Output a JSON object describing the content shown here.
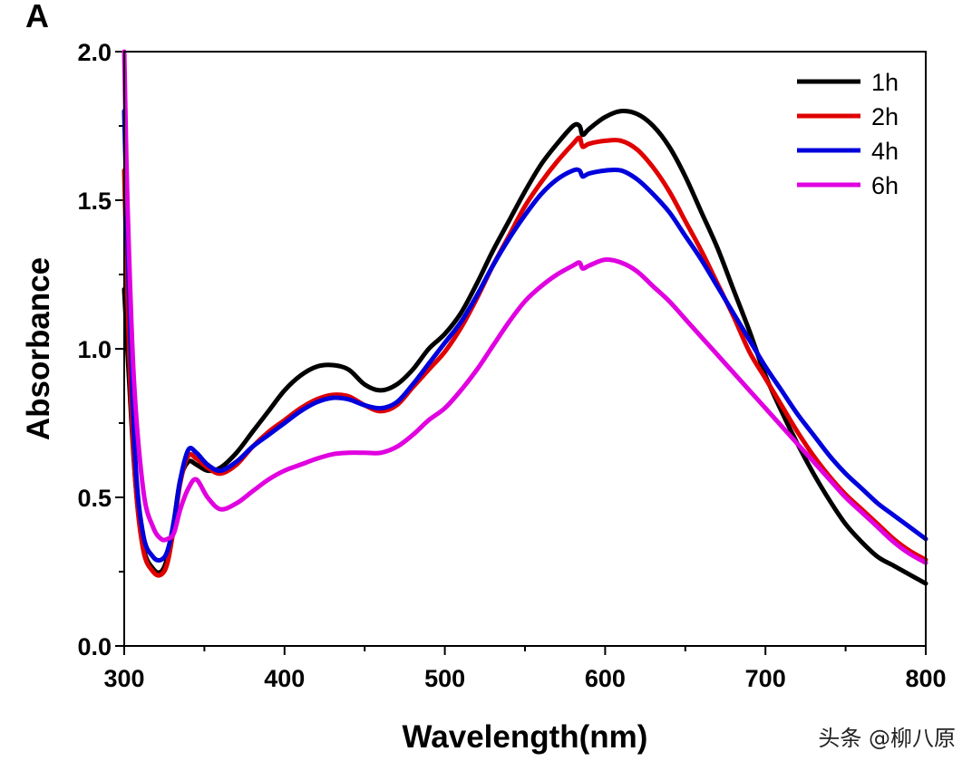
{
  "chart_data": {
    "type": "line",
    "panel_label": "A",
    "title": "",
    "xlabel": "Wavelength(nm)",
    "ylabel": "Absorbance",
    "xlim": [
      300,
      800
    ],
    "ylim": [
      0.0,
      2.0
    ],
    "x_ticks": [
      300,
      400,
      500,
      600,
      700,
      800
    ],
    "x_tick_labels": [
      "300",
      "400",
      "500",
      "600",
      "700",
      "800"
    ],
    "y_ticks": [
      0.0,
      0.5,
      1.0,
      1.5,
      2.0
    ],
    "y_tick_labels": [
      "0.0",
      "0.5",
      "1.0",
      "1.5",
      "2.0"
    ],
    "grid": false,
    "legend_position": "top-right",
    "series": [
      {
        "name": "1h",
        "color": "#000000",
        "x": [
          300,
          303,
          307,
          312,
          318,
          323,
          327,
          331,
          335,
          340,
          345,
          352,
          360,
          370,
          380,
          390,
          400,
          410,
          420,
          430,
          440,
          450,
          460,
          470,
          480,
          490,
          500,
          510,
          520,
          530,
          540,
          550,
          560,
          570,
          580,
          584,
          586,
          590,
          600,
          610,
          620,
          630,
          640,
          650,
          660,
          670,
          680,
          690,
          700,
          710,
          720,
          730,
          740,
          750,
          760,
          770,
          780,
          790,
          800
        ],
        "values": [
          1.2,
          0.9,
          0.55,
          0.33,
          0.26,
          0.25,
          0.3,
          0.42,
          0.56,
          0.62,
          0.61,
          0.59,
          0.6,
          0.65,
          0.72,
          0.79,
          0.86,
          0.91,
          0.94,
          0.945,
          0.93,
          0.88,
          0.86,
          0.88,
          0.93,
          1.0,
          1.05,
          1.12,
          1.22,
          1.33,
          1.43,
          1.53,
          1.62,
          1.69,
          1.75,
          1.75,
          1.72,
          1.74,
          1.78,
          1.8,
          1.79,
          1.75,
          1.68,
          1.58,
          1.46,
          1.34,
          1.2,
          1.06,
          0.91,
          0.79,
          0.68,
          0.58,
          0.49,
          0.41,
          0.35,
          0.3,
          0.27,
          0.24,
          0.21
        ]
      },
      {
        "name": "2h",
        "color": "#e00000",
        "x": [
          300,
          303,
          307,
          312,
          318,
          323,
          327,
          331,
          335,
          340,
          345,
          352,
          360,
          370,
          380,
          390,
          400,
          410,
          420,
          430,
          440,
          450,
          460,
          470,
          480,
          490,
          500,
          510,
          520,
          530,
          540,
          550,
          560,
          570,
          580,
          584,
          586,
          590,
          600,
          610,
          620,
          630,
          640,
          650,
          660,
          670,
          680,
          690,
          700,
          710,
          720,
          730,
          740,
          750,
          760,
          770,
          780,
          790,
          800
        ],
        "values": [
          1.6,
          1.0,
          0.55,
          0.32,
          0.25,
          0.24,
          0.28,
          0.4,
          0.55,
          0.64,
          0.63,
          0.6,
          0.58,
          0.61,
          0.67,
          0.72,
          0.76,
          0.8,
          0.83,
          0.845,
          0.84,
          0.81,
          0.79,
          0.81,
          0.87,
          0.93,
          0.99,
          1.07,
          1.17,
          1.28,
          1.38,
          1.48,
          1.56,
          1.63,
          1.69,
          1.71,
          1.68,
          1.69,
          1.7,
          1.7,
          1.67,
          1.61,
          1.53,
          1.43,
          1.33,
          1.22,
          1.11,
          0.99,
          0.9,
          0.81,
          0.72,
          0.64,
          0.57,
          0.51,
          0.46,
          0.41,
          0.36,
          0.32,
          0.29
        ]
      },
      {
        "name": "4h",
        "color": "#0000dc",
        "x": [
          300,
          303,
          307,
          312,
          318,
          323,
          327,
          331,
          335,
          340,
          345,
          352,
          360,
          370,
          380,
          390,
          400,
          410,
          420,
          430,
          440,
          450,
          460,
          470,
          480,
          490,
          500,
          510,
          520,
          530,
          540,
          550,
          560,
          570,
          580,
          584,
          586,
          590,
          600,
          610,
          620,
          630,
          640,
          650,
          660,
          670,
          680,
          690,
          700,
          710,
          720,
          730,
          740,
          750,
          760,
          770,
          780,
          790,
          800
        ],
        "values": [
          1.8,
          1.2,
          0.62,
          0.37,
          0.3,
          0.29,
          0.32,
          0.42,
          0.56,
          0.66,
          0.65,
          0.61,
          0.59,
          0.62,
          0.67,
          0.71,
          0.75,
          0.79,
          0.82,
          0.835,
          0.83,
          0.81,
          0.8,
          0.82,
          0.88,
          0.95,
          1.02,
          1.09,
          1.18,
          1.28,
          1.37,
          1.45,
          1.52,
          1.57,
          1.6,
          1.6,
          1.58,
          1.59,
          1.6,
          1.6,
          1.57,
          1.52,
          1.46,
          1.38,
          1.3,
          1.21,
          1.12,
          1.03,
          0.94,
          0.86,
          0.78,
          0.71,
          0.64,
          0.58,
          0.53,
          0.48,
          0.44,
          0.4,
          0.36
        ]
      },
      {
        "name": "6h",
        "color": "#e000e0",
        "x": [
          300,
          302,
          306,
          312,
          318,
          323,
          327,
          331,
          335,
          340,
          345,
          352,
          360,
          370,
          380,
          390,
          400,
          410,
          420,
          430,
          440,
          450,
          460,
          470,
          480,
          490,
          500,
          510,
          520,
          530,
          540,
          550,
          560,
          570,
          580,
          584,
          586,
          590,
          600,
          610,
          620,
          630,
          640,
          650,
          660,
          670,
          680,
          690,
          700,
          710,
          720,
          730,
          740,
          750,
          760,
          770,
          780,
          790,
          800
        ],
        "values": [
          2.0,
          1.5,
          0.9,
          0.52,
          0.4,
          0.36,
          0.36,
          0.38,
          0.46,
          0.53,
          0.56,
          0.5,
          0.46,
          0.48,
          0.52,
          0.56,
          0.59,
          0.61,
          0.63,
          0.645,
          0.65,
          0.65,
          0.65,
          0.67,
          0.71,
          0.76,
          0.8,
          0.86,
          0.93,
          1.01,
          1.09,
          1.16,
          1.21,
          1.25,
          1.28,
          1.29,
          1.27,
          1.28,
          1.3,
          1.29,
          1.26,
          1.21,
          1.16,
          1.1,
          1.04,
          0.98,
          0.92,
          0.86,
          0.8,
          0.74,
          0.68,
          0.62,
          0.56,
          0.5,
          0.45,
          0.4,
          0.35,
          0.31,
          0.28
        ]
      }
    ]
  },
  "watermark": "头条 @柳八原"
}
